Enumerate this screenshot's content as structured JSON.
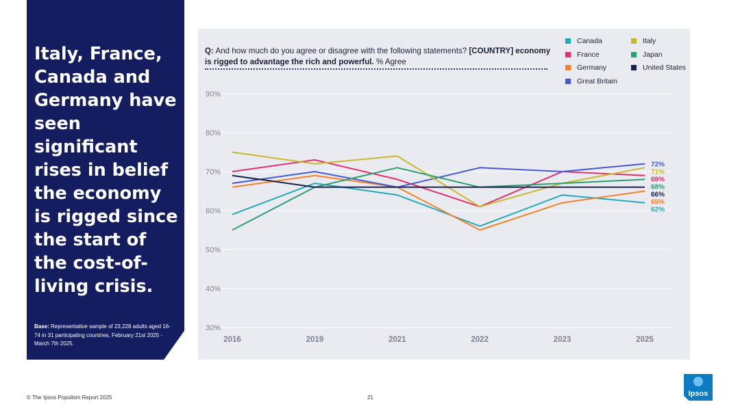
{
  "side_panel": {
    "headline": "Italy, France, Canada and Germany have seen significant rises in belief the economy is rigged since the start of the cost-of-living crisis.",
    "base_label": "Base:",
    "base_text": "Representative sample of 23,228 adults aged 16-74 in 31 participating countries, February 21st 2025 - March 7th 2025."
  },
  "question": {
    "prefix": "Q:",
    "text_before": "And how much do you agree or disagree with the following statements?",
    "bold_statement": "[COUNTRY] economy is rigged to advantage the rich and powerful.",
    "suffix": "% Agree"
  },
  "chart_data": {
    "type": "line",
    "x": [
      "2016",
      "2019",
      "2021",
      "2022",
      "2023",
      "2025"
    ],
    "ylim": [
      30,
      90
    ],
    "y_ticks": [
      "90%",
      "80%",
      "70%",
      "60%",
      "50%",
      "40%",
      "30%"
    ],
    "grid": true,
    "legend_position": "top-right",
    "series": [
      {
        "name": "Canada",
        "color": "#23a9b5",
        "values": [
          59,
          67,
          64,
          56,
          64,
          62
        ],
        "end_label": "62%"
      },
      {
        "name": "France",
        "color": "#e0306a",
        "values": [
          70,
          73,
          68,
          61,
          70,
          69
        ],
        "end_label": "69%"
      },
      {
        "name": "Germany",
        "color": "#f5822a",
        "values": [
          66,
          69,
          66,
          55,
          62,
          65
        ],
        "end_label": "65%"
      },
      {
        "name": "Great Britain",
        "color": "#4657d8",
        "values": [
          67,
          70,
          66,
          71,
          70,
          72
        ],
        "end_label": "72%"
      },
      {
        "name": "Italy",
        "color": "#c9b82a",
        "values": [
          75,
          72,
          74,
          61,
          67,
          71
        ],
        "end_label": "71%"
      },
      {
        "name": "Japan",
        "color": "#2a9e6f",
        "values": [
          55,
          66,
          71,
          66,
          67,
          68
        ],
        "end_label": "68%"
      },
      {
        "name": "United States",
        "color": "#1b1f4e",
        "values": [
          69,
          66,
          66,
          66,
          66,
          66
        ],
        "end_label": "66%"
      }
    ]
  },
  "footer": {
    "copyright": "© The Ipsos Populism Report 2025",
    "page_number": "21",
    "logo_text": "Ipsos"
  }
}
